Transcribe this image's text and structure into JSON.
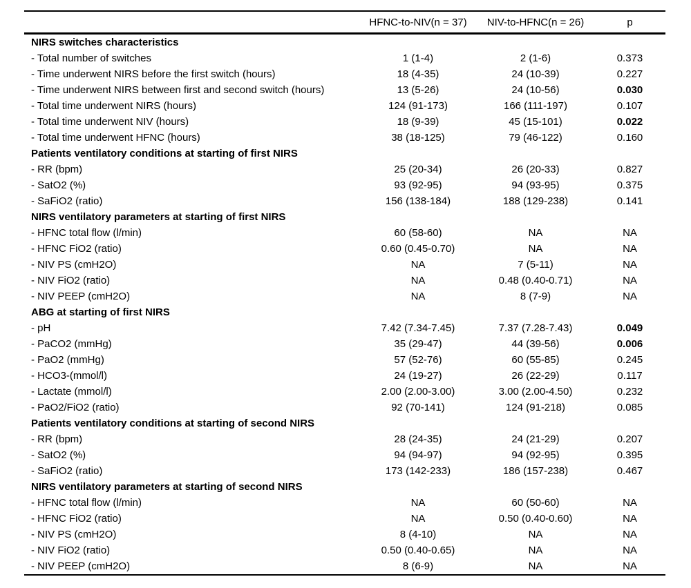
{
  "table": {
    "columns": [
      "",
      "HFNC-to-NIV(n = 37)",
      "NIV-to-HFNC(n = 26)",
      "p"
    ],
    "sections": [
      {
        "title": "NIRS switches characteristics",
        "rows": [
          {
            "label": "- Total number of switches",
            "hfnc_to_niv": "1 (1-4)",
            "niv_to_hfnc": "2 (1-6)",
            "p": "0.373",
            "p_bold": false
          },
          {
            "label": "- Time underwent NIRS before the first switch (hours)",
            "hfnc_to_niv": "18 (4-35)",
            "niv_to_hfnc": "24 (10-39)",
            "p": "0.227",
            "p_bold": false
          },
          {
            "label": "- Time underwent NIRS between first and second switch (hours)",
            "hfnc_to_niv": "13 (5-26)",
            "niv_to_hfnc": "24 (10-56)",
            "p": "0.030",
            "p_bold": true
          },
          {
            "label": "- Total time underwent NIRS (hours)",
            "hfnc_to_niv": "124 (91-173)",
            "niv_to_hfnc": "166 (111-197)",
            "p": "0.107",
            "p_bold": false
          },
          {
            "label": "- Total time underwent NIV (hours)",
            "hfnc_to_niv": "18 (9-39)",
            "niv_to_hfnc": "45 (15-101)",
            "p": "0.022",
            "p_bold": true
          },
          {
            "label": "- Total time underwent HFNC (hours)",
            "hfnc_to_niv": "38 (18-125)",
            "niv_to_hfnc": "79 (46-122)",
            "p": "0.160",
            "p_bold": false
          }
        ]
      },
      {
        "title": "Patients ventilatory conditions at starting of first NIRS",
        "rows": [
          {
            "label": "- RR (bpm)",
            "hfnc_to_niv": "25 (20-34)",
            "niv_to_hfnc": "26 (20-33)",
            "p": "0.827",
            "p_bold": false
          },
          {
            "label": "- SatO2 (%)",
            "hfnc_to_niv": "93 (92-95)",
            "niv_to_hfnc": "94 (93-95)",
            "p": "0.375",
            "p_bold": false
          },
          {
            "label": "- SaFiO2 (ratio)",
            "hfnc_to_niv": "156 (138-184)",
            "niv_to_hfnc": "188 (129-238)",
            "p": "0.141",
            "p_bold": false
          }
        ]
      },
      {
        "title": "NIRS ventilatory parameters at starting of first NIRS",
        "rows": [
          {
            "label": "- HFNC total flow (l/min)",
            "hfnc_to_niv": "60 (58-60)",
            "niv_to_hfnc": "NA",
            "p": "NA",
            "p_bold": false
          },
          {
            "label": "- HFNC FiO2 (ratio)",
            "hfnc_to_niv": "0.60 (0.45-0.70)",
            "niv_to_hfnc": "NA",
            "p": "NA",
            "p_bold": false
          },
          {
            "label": "- NIV PS (cmH2O)",
            "hfnc_to_niv": "NA",
            "niv_to_hfnc": "7 (5-11)",
            "p": "NA",
            "p_bold": false
          },
          {
            "label": "- NIV FiO2 (ratio)",
            "hfnc_to_niv": "NA",
            "niv_to_hfnc": "0.48 (0.40-0.71)",
            "p": "NA",
            "p_bold": false
          },
          {
            "label": "- NIV PEEP (cmH2O)",
            "hfnc_to_niv": "NA",
            "niv_to_hfnc": "8 (7-9)",
            "p": "NA",
            "p_bold": false
          }
        ]
      },
      {
        "title": "ABG at starting of first NIRS",
        "rows": [
          {
            "label": "- pH",
            "hfnc_to_niv": "7.42 (7.34-7.45)",
            "niv_to_hfnc": "7.37 (7.28-7.43)",
            "p": "0.049",
            "p_bold": true
          },
          {
            "label": "- PaCO2 (mmHg)",
            "hfnc_to_niv": "35 (29-47)",
            "niv_to_hfnc": "44 (39-56)",
            "p": "0.006",
            "p_bold": true
          },
          {
            "label": "- PaO2 (mmHg)",
            "hfnc_to_niv": "57 (52-76)",
            "niv_to_hfnc": "60 (55-85)",
            "p": "0.245",
            "p_bold": false
          },
          {
            "label": "- HCO3-(mmol/l)",
            "hfnc_to_niv": "24 (19-27)",
            "niv_to_hfnc": "26 (22-29)",
            "p": "0.117",
            "p_bold": false
          },
          {
            "label": "- Lactate (mmol/l)",
            "hfnc_to_niv": "2.00 (2.00-3.00)",
            "niv_to_hfnc": "3.00 (2.00-4.50)",
            "p": "0.232",
            "p_bold": false
          },
          {
            "label": "- PaO2/FiO2 (ratio)",
            "hfnc_to_niv": "92 (70-141)",
            "niv_to_hfnc": "124 (91-218)",
            "p": "0.085",
            "p_bold": false
          }
        ]
      },
      {
        "title": "Patients ventilatory conditions at starting of second NIRS",
        "rows": [
          {
            "label": "- RR (bpm)",
            "hfnc_to_niv": "28 (24-35)",
            "niv_to_hfnc": "24 (21-29)",
            "p": "0.207",
            "p_bold": false
          },
          {
            "label": "- SatO2 (%)",
            "hfnc_to_niv": "94 (94-97)",
            "niv_to_hfnc": "94 (92-95)",
            "p": "0.395",
            "p_bold": false
          },
          {
            "label": "- SaFiO2 (ratio)",
            "hfnc_to_niv": "173 (142-233)",
            "niv_to_hfnc": "186 (157-238)",
            "p": "0.467",
            "p_bold": false
          }
        ]
      },
      {
        "title": "NIRS ventilatory parameters at starting of second NIRS",
        "rows": [
          {
            "label": "- HFNC total flow (l/min)",
            "hfnc_to_niv": "NA",
            "niv_to_hfnc": "60 (50-60)",
            "p": "NA",
            "p_bold": false
          },
          {
            "label": "- HFNC FiO2 (ratio)",
            "hfnc_to_niv": "NA",
            "niv_to_hfnc": "0.50 (0.40-0.60)",
            "p": "NA",
            "p_bold": false
          },
          {
            "label": "- NIV PS (cmH2O)",
            "hfnc_to_niv": "8 (4-10)",
            "niv_to_hfnc": "NA",
            "p": "NA",
            "p_bold": false
          },
          {
            "label": "- NIV FiO2 (ratio)",
            "hfnc_to_niv": "0.50 (0.40-0.65)",
            "niv_to_hfnc": "NA",
            "p": "NA",
            "p_bold": false
          },
          {
            "label": "- NIV PEEP (cmH2O)",
            "hfnc_to_niv": "8 (6-9)",
            "niv_to_hfnc": "NA",
            "p": "NA",
            "p_bold": false
          }
        ]
      }
    ]
  }
}
